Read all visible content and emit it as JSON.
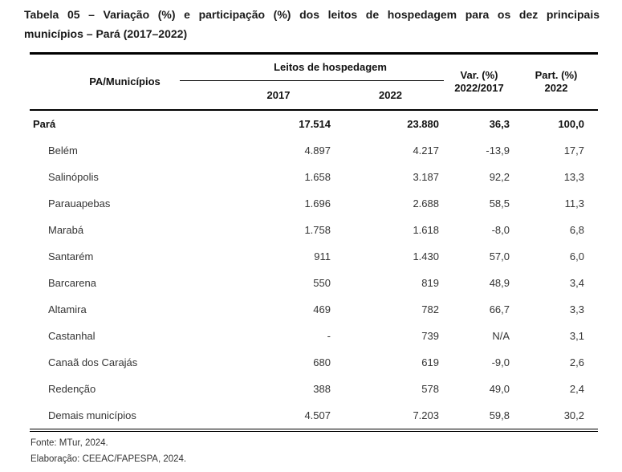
{
  "title": {
    "line1": "Tabela 05 – Variação (%) e participação (%) dos leitos de hospedagem para os dez principais",
    "line2": "municípios – Pará (2017–2022)"
  },
  "table": {
    "header": {
      "municipios": "PA/Municípios",
      "leitos_group": "Leitos de hospedagem",
      "y2017": "2017",
      "y2022": "2022",
      "var_line1": "Var. (%)",
      "var_line2": "2022/2017",
      "part_line1": "Part. (%)",
      "part_line2": "2022"
    },
    "rows": [
      {
        "name": "Pará",
        "y2017": "17.514",
        "y2022": "23.880",
        "variation": "36,3",
        "participation": "100,0",
        "emphasis": true,
        "indent": false
      },
      {
        "name": "Belém",
        "y2017": "4.897",
        "y2022": "4.217",
        "variation": "-13,9",
        "participation": "17,7",
        "emphasis": false,
        "indent": true
      },
      {
        "name": "Salinópolis",
        "y2017": "1.658",
        "y2022": "3.187",
        "variation": "92,2",
        "participation": "13,3",
        "emphasis": false,
        "indent": true
      },
      {
        "name": "Parauapebas",
        "y2017": "1.696",
        "y2022": "2.688",
        "variation": "58,5",
        "participation": "11,3",
        "emphasis": false,
        "indent": true
      },
      {
        "name": "Marabá",
        "y2017": "1.758",
        "y2022": "1.618",
        "variation": "-8,0",
        "participation": "6,8",
        "emphasis": false,
        "indent": true
      },
      {
        "name": "Santarém",
        "y2017": "911",
        "y2022": "1.430",
        "variation": "57,0",
        "participation": "6,0",
        "emphasis": false,
        "indent": true
      },
      {
        "name": "Barcarena",
        "y2017": "550",
        "y2022": "819",
        "variation": "48,9",
        "participation": "3,4",
        "emphasis": false,
        "indent": true
      },
      {
        "name": "Altamira",
        "y2017": "469",
        "y2022": "782",
        "variation": "66,7",
        "participation": "3,3",
        "emphasis": false,
        "indent": true
      },
      {
        "name": "Castanhal",
        "y2017": "-",
        "y2022": "739",
        "variation": "N/A",
        "participation": "3,1",
        "emphasis": false,
        "indent": true
      },
      {
        "name": "Canaã dos Carajás",
        "y2017": "680",
        "y2022": "619",
        "variation": "-9,0",
        "participation": "2,6",
        "emphasis": false,
        "indent": true
      },
      {
        "name": "Redenção",
        "y2017": "388",
        "y2022": "578",
        "variation": "49,0",
        "participation": "2,4",
        "emphasis": false,
        "indent": true
      },
      {
        "name": "Demais municípios",
        "y2017": "4.507",
        "y2022": "7.203",
        "variation": "59,8",
        "participation": "30,2",
        "emphasis": false,
        "indent": true
      }
    ]
  },
  "footer": {
    "source": "Fonte: MTur, 2024.",
    "elaboration": "Elaboração: CEEAC/FAPESPA, 2024."
  },
  "colors": {
    "background": "#ffffff",
    "text": "#343434",
    "emphasis_text": "#111111",
    "border": "#000000"
  }
}
